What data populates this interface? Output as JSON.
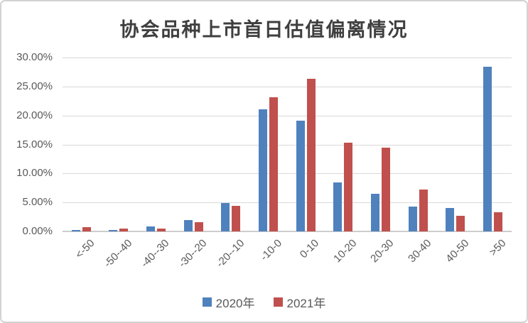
{
  "chart_data": {
    "type": "bar",
    "title": "协会品种上市首日估值偏离情况",
    "categories": [
      "<-50",
      "-50--40",
      "-40--30",
      "-30--20",
      "-20--10",
      "-10-0",
      "0-10",
      "10-20",
      "20-30",
      "30-40",
      "40-50",
      ">50"
    ],
    "series": [
      {
        "name": "2020年",
        "color": "#4F81BD",
        "values": [
          0.3,
          0.3,
          0.9,
          1.9,
          4.9,
          21.1,
          19.15,
          8.4,
          6.55,
          4.3,
          4.0,
          28.35
        ]
      },
      {
        "name": "2021年",
        "color": "#C0504D",
        "values": [
          0.7,
          0.45,
          0.55,
          1.65,
          4.4,
          23.2,
          26.35,
          15.25,
          14.5,
          7.25,
          2.65,
          3.25
        ]
      }
    ],
    "y_axis": {
      "tick_labels": [
        "30.00%",
        "25.00%",
        "20.00%",
        "15.00%",
        "10.00%",
        "5.00%",
        "0.00%"
      ],
      "tick_values": [
        30,
        25,
        20,
        15,
        10,
        5,
        0
      ],
      "min": 0,
      "max": 30,
      "unit": "%"
    },
    "xlabel": "",
    "ylabel": "",
    "legend_position": "bottom",
    "grid": true
  },
  "colors": {
    "series_2020": "#4F81BD",
    "series_2021": "#C0504D",
    "gridline": "#D9D9D9",
    "axis_text": "#595959",
    "title_text": "#3F3F3F"
  }
}
